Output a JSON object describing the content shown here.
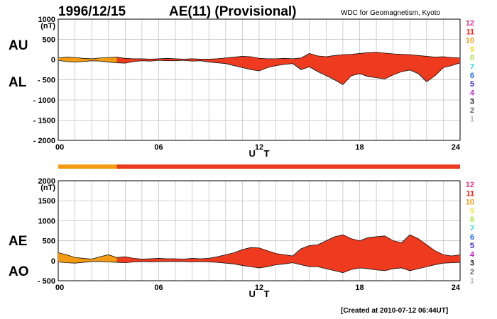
{
  "header": {
    "date": "1996/12/15",
    "title": "AE(11) (Provisional)",
    "source": "WDC for Geomagnetism, Kyoto"
  },
  "footer": {
    "created": "[Created at 2010-07-12 06:44UT]"
  },
  "colors": {
    "early": "#f39c12",
    "main": "#ee3a1e",
    "outline": "#111111",
    "grid": "#bbbbbb"
  },
  "station_levels": [
    {
      "label": "12",
      "color": "#e6338a"
    },
    {
      "label": "11",
      "color": "#e8281e"
    },
    {
      "label": "10",
      "color": "#f39c12"
    },
    {
      "label": "9",
      "color": "#f0e020"
    },
    {
      "label": "8",
      "color": "#a8e83a"
    },
    {
      "label": "7",
      "color": "#28d6e6"
    },
    {
      "label": "6",
      "color": "#1a6fe8"
    },
    {
      "label": "5",
      "color": "#3a22c8"
    },
    {
      "label": "4",
      "color": "#c822c8"
    },
    {
      "label": "3",
      "color": "#222222"
    },
    {
      "label": "2",
      "color": "#666666"
    },
    {
      "label": "1",
      "color": "#bbbbbb"
    }
  ],
  "chart_data": [
    {
      "type": "area",
      "name": "AU/AL",
      "side_labels": [
        "AU",
        "AL"
      ],
      "unit": "(nT)",
      "xlabel": "U T",
      "xlim": [
        0,
        24
      ],
      "xticks": [
        "00",
        "06",
        "12",
        "18",
        "24"
      ],
      "ylim": [
        -2000,
        1000
      ],
      "yticks": [
        "1000",
        "500",
        "0",
        "- 500",
        "- 1000",
        "- 1500",
        "- 2000"
      ],
      "ytick_values": [
        1000,
        500,
        0,
        -500,
        -1000,
        -1500,
        -2000
      ],
      "grid": true,
      "early_until": 3.5,
      "x": [
        0,
        0.5,
        1,
        1.5,
        2,
        2.5,
        3,
        3.5,
        4,
        4.5,
        5,
        5.5,
        6,
        6.5,
        7,
        7.5,
        8,
        8.5,
        9,
        9.5,
        10,
        10.5,
        11,
        11.5,
        12,
        12.5,
        13,
        13.5,
        14,
        14.5,
        15,
        15.5,
        16,
        16.5,
        17,
        17.5,
        18,
        18.5,
        19,
        19.5,
        20,
        20.5,
        21,
        21.5,
        22,
        22.5,
        23,
        23.5,
        24
      ],
      "au": [
        40,
        60,
        50,
        30,
        20,
        40,
        50,
        60,
        30,
        20,
        20,
        10,
        20,
        30,
        20,
        10,
        20,
        10,
        10,
        20,
        40,
        60,
        80,
        70,
        30,
        20,
        20,
        30,
        20,
        40,
        150,
        90,
        70,
        100,
        120,
        130,
        150,
        170,
        180,
        160,
        140,
        130,
        120,
        100,
        80,
        60,
        70,
        50,
        40
      ],
      "al": [
        -20,
        -50,
        -60,
        -50,
        -30,
        -40,
        -60,
        -80,
        -90,
        -50,
        -30,
        -40,
        -20,
        -30,
        -30,
        -20,
        -40,
        -30,
        -60,
        -80,
        -100,
        -150,
        -200,
        -250,
        -280,
        -200,
        -150,
        -120,
        -100,
        -250,
        -180,
        -300,
        -400,
        -500,
        -620,
        -400,
        -350,
        -420,
        -450,
        -480,
        -380,
        -300,
        -260,
        -350,
        -550,
        -400,
        -200,
        -150,
        -80
      ]
    },
    {
      "type": "area",
      "name": "AE/AO",
      "side_labels": [
        "AE",
        "AO"
      ],
      "unit": "(nT)",
      "xlabel": "U T",
      "xlim": [
        0,
        24
      ],
      "xticks": [
        "00",
        "06",
        "12",
        "18",
        "24"
      ],
      "ylim": [
        -500,
        2000
      ],
      "yticks": [
        "2000",
        "1500",
        "1000",
        "500",
        "0",
        "- 500"
      ],
      "ytick_values": [
        2000,
        1500,
        1000,
        500,
        0,
        -500
      ],
      "grid": true,
      "early_until": 3.5,
      "x": [
        0,
        0.5,
        1,
        1.5,
        2,
        2.5,
        3,
        3.5,
        4,
        4.5,
        5,
        5.5,
        6,
        6.5,
        7,
        7.5,
        8,
        8.5,
        9,
        9.5,
        10,
        10.5,
        11,
        11.5,
        12,
        12.5,
        13,
        13.5,
        14,
        14.5,
        15,
        15.5,
        16,
        16.5,
        17,
        17.5,
        18,
        18.5,
        19,
        19.5,
        20,
        20.5,
        21,
        21.5,
        22,
        22.5,
        23,
        23.5,
        24
      ],
      "ae": [
        200,
        150,
        80,
        60,
        40,
        100,
        150,
        80,
        100,
        60,
        40,
        50,
        60,
        50,
        50,
        40,
        60,
        50,
        60,
        100,
        150,
        200,
        280,
        330,
        320,
        250,
        180,
        150,
        120,
        300,
        380,
        400,
        500,
        600,
        650,
        550,
        500,
        580,
        600,
        620,
        500,
        450,
        650,
        550,
        400,
        250,
        150,
        120,
        150
      ],
      "ao": [
        -30,
        -50,
        -60,
        -40,
        -20,
        -20,
        -30,
        -40,
        -50,
        -30,
        -20,
        -30,
        -20,
        -20,
        -20,
        -20,
        -30,
        -20,
        -30,
        -40,
        -60,
        -80,
        -120,
        -150,
        -180,
        -150,
        -100,
        -80,
        -50,
        -100,
        -150,
        -150,
        -200,
        -250,
        -300,
        -220,
        -180,
        -200,
        -230,
        -250,
        -200,
        -180,
        -250,
        -200,
        -150,
        -100,
        -60,
        -50,
        -40
      ]
    }
  ],
  "status_bar": {
    "early_color": "#f39c12",
    "main_color": "#ee3a1e",
    "early_until": 3.5
  }
}
